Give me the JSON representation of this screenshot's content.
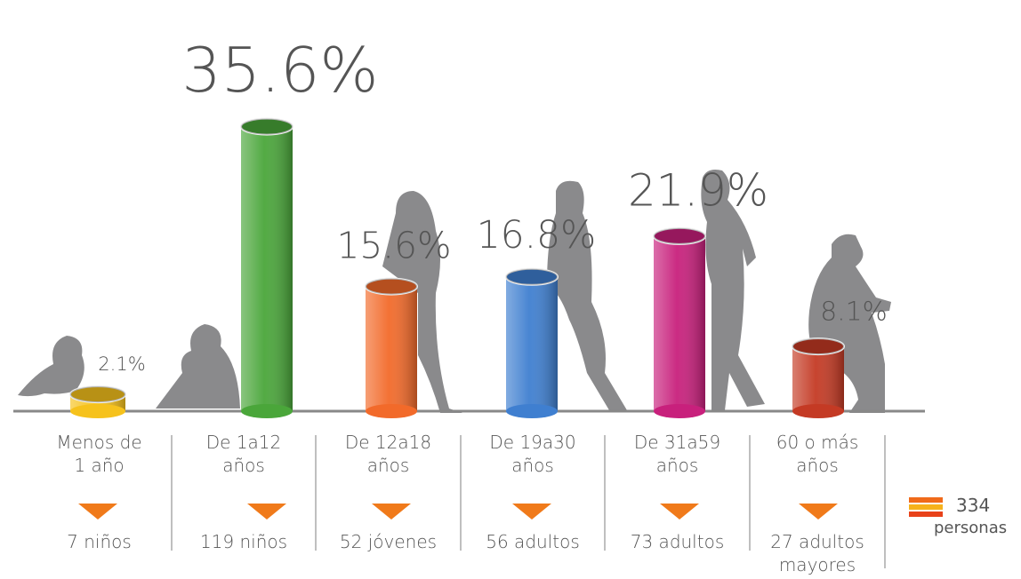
{
  "chart_data": {
    "type": "bar",
    "categories": [
      "Menos de\n1 año",
      "De 1a12\naños",
      "De 12a18\naños",
      "De 19a30\naños",
      "De 31a59\naños",
      "60 o más\naños"
    ],
    "values": [
      2.1,
      35.6,
      15.6,
      16.8,
      21.9,
      8.1
    ],
    "value_labels": [
      "2.1%",
      "35.6%",
      "15.6%",
      "16.8%",
      "21.9%",
      "8.1%"
    ],
    "colors": [
      "#f6c21c",
      "#4aa63a",
      "#f26a2a",
      "#3f7fd0",
      "#c8207c",
      "#c43a24"
    ],
    "counts": [
      "7 niños",
      "119 niños",
      "52 jóvenes",
      "56 adultos",
      "73 adultos",
      "27 adultos\nmayores"
    ],
    "total": "334",
    "total_label": "personas"
  }
}
